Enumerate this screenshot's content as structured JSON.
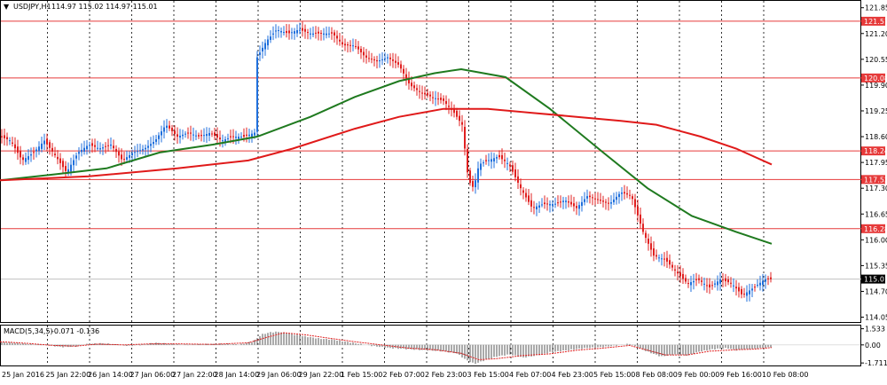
{
  "header": {
    "dropdown_glyph": "▼",
    "title": "USDJPY,H1",
    "ohlc": "114.97 115.02 114.97 115.01"
  },
  "indicator": {
    "label": "MACD(5,34,5)",
    "values": "-0.071 -0.136"
  },
  "colors": {
    "bull": "#1f6fdc",
    "bear": "#e02020",
    "ma_fast": "#1f7a1f",
    "ma_slow": "#e01a1a",
    "level": "#e63a3a",
    "macd_hist": "#555555",
    "macd_signal": "#e02020"
  },
  "chart_data": [
    {
      "type": "candlestick",
      "x_labels": [
        "25 Jan 2016",
        "25 Jan 22:00",
        "26 Jan 14:00",
        "27 Jan 06:00",
        "27 Jan 22:00",
        "28 Jan 14:00",
        "29 Jan 06:00",
        "29 Jan 22:00",
        "1 Feb 15:00",
        "2 Feb 07:00",
        "2 Feb 23:00",
        "3 Feb 15:00",
        "4 Feb 07:00",
        "4 Feb 23:00",
        "5 Feb 15:00",
        "8 Feb 08:00",
        "9 Feb 00:00",
        "9 Feb 16:00",
        "10 Feb 08:00"
      ],
      "y_ticks": [
        {
          "label": "121.85",
          "v": 121.85
        },
        {
          "label": "121.20",
          "v": 121.2
        },
        {
          "label": "120.55",
          "v": 120.55
        },
        {
          "label": "119.90",
          "v": 119.9
        },
        {
          "label": "119.25",
          "v": 119.25
        },
        {
          "label": "118.60",
          "v": 118.6
        },
        {
          "label": "117.95",
          "v": 117.95
        },
        {
          "label": "117.30",
          "v": 117.3
        },
        {
          "label": "116.65",
          "v": 116.65
        },
        {
          "label": "116.00",
          "v": 116.0
        },
        {
          "label": "115.35",
          "v": 115.35
        },
        {
          "label": "114.70",
          "v": 114.7
        },
        {
          "label": "114.05",
          "v": 114.05
        }
      ],
      "ylim": [
        113.95,
        122.0
      ],
      "levels": [
        {
          "label": "121.51",
          "v": 121.51
        },
        {
          "label": "120.08",
          "v": 120.08
        },
        {
          "label": "118.24",
          "v": 118.24
        },
        {
          "label": "117.52",
          "v": 117.52
        },
        {
          "label": "116.28",
          "v": 116.28
        }
      ],
      "current_price": {
        "label": "115.01",
        "v": 115.01
      },
      "price_path": [
        [
          0,
          118.6
        ],
        [
          12,
          118.5
        ],
        [
          25,
          118.0
        ],
        [
          38,
          118.2
        ],
        [
          50,
          118.5
        ],
        [
          63,
          118.1
        ],
        [
          75,
          117.7
        ],
        [
          88,
          118.2
        ],
        [
          100,
          118.4
        ],
        [
          112,
          118.3
        ],
        [
          125,
          118.4
        ],
        [
          138,
          118.0
        ],
        [
          150,
          118.2
        ],
        [
          163,
          118.3
        ],
        [
          175,
          118.5
        ],
        [
          187,
          118.9
        ],
        [
          200,
          118.6
        ],
        [
          212,
          118.7
        ],
        [
          225,
          118.6
        ],
        [
          237,
          118.7
        ],
        [
          250,
          118.5
        ],
        [
          262,
          118.6
        ],
        [
          275,
          118.6
        ],
        [
          287,
          118.7
        ],
        [
          290,
          120.6
        ],
        [
          300,
          121.0
        ],
        [
          312,
          121.3
        ],
        [
          325,
          121.2
        ],
        [
          337,
          121.3
        ],
        [
          350,
          121.2
        ],
        [
          362,
          121.2
        ],
        [
          375,
          121.2
        ],
        [
          387,
          120.9
        ],
        [
          400,
          120.9
        ],
        [
          412,
          120.6
        ],
        [
          425,
          120.5
        ],
        [
          437,
          120.6
        ],
        [
          450,
          120.4
        ],
        [
          462,
          119.9
        ],
        [
          475,
          119.7
        ],
        [
          487,
          119.6
        ],
        [
          500,
          119.5
        ],
        [
          512,
          119.2
        ],
        [
          521,
          118.9
        ],
        [
          528,
          117.5
        ],
        [
          534,
          117.3
        ],
        [
          540,
          117.9
        ],
        [
          550,
          118.0
        ],
        [
          562,
          118.1
        ],
        [
          574,
          117.9
        ],
        [
          587,
          117.3
        ],
        [
          600,
          116.8
        ],
        [
          612,
          116.9
        ],
        [
          625,
          116.9
        ],
        [
          637,
          117.0
        ],
        [
          650,
          116.8
        ],
        [
          662,
          117.1
        ],
        [
          675,
          117.0
        ],
        [
          687,
          116.9
        ],
        [
          700,
          117.2
        ],
        [
          712,
          117.1
        ],
        [
          725,
          116.2
        ],
        [
          737,
          115.6
        ],
        [
          750,
          115.5
        ],
        [
          762,
          115.2
        ],
        [
          775,
          114.9
        ],
        [
          787,
          115.0
        ],
        [
          800,
          114.8
        ],
        [
          812,
          115.0
        ],
        [
          825,
          114.9
        ],
        [
          837,
          114.6
        ],
        [
          850,
          114.8
        ],
        [
          862,
          115.0
        ],
        [
          870,
          115.01
        ]
      ],
      "series": [
        {
          "name": "",
          "kind": "ma",
          "path": [
            [
              0,
              117.5
            ],
            [
              62,
              117.65
            ],
            [
              120,
              117.8
            ],
            [
              180,
              118.2
            ],
            [
              240,
              118.4
            ],
            [
              290,
              118.6
            ],
            [
              350,
              119.1
            ],
            [
              400,
              119.6
            ],
            [
              450,
              120.0
            ],
            [
              490,
              120.2
            ],
            [
              520,
              120.3
            ],
            [
              570,
              120.1
            ],
            [
              620,
              119.3
            ],
            [
              680,
              118.2
            ],
            [
              730,
              117.3
            ],
            [
              780,
              116.6
            ],
            [
              830,
              116.2
            ],
            [
              870,
              115.9
            ]
          ]
        },
        {
          "name": "",
          "kind": "ma",
          "path": [
            [
              0,
              117.5
            ],
            [
              100,
              117.6
            ],
            [
              200,
              117.8
            ],
            [
              280,
              118.0
            ],
            [
              330,
              118.3
            ],
            [
              400,
              118.8
            ],
            [
              450,
              119.1
            ],
            [
              500,
              119.3
            ],
            [
              550,
              119.3
            ],
            [
              600,
              119.2
            ],
            [
              650,
              119.1
            ],
            [
              700,
              119.0
            ],
            [
              740,
              118.9
            ],
            [
              790,
              118.6
            ],
            [
              830,
              118.3
            ],
            [
              870,
              117.9
            ]
          ]
        }
      ]
    },
    {
      "type": "bar",
      "name": "MACD(5,34,5)",
      "y_ticks": [
        {
          "label": "1.533",
          "v": 1.533
        },
        {
          "label": "0.00",
          "v": 0.0
        },
        {
          "label": "-1.711",
          "v": -1.711
        }
      ],
      "ylim": [
        -1.95,
        1.75
      ],
      "histogram_path": [
        [
          0,
          0.25
        ],
        [
          15,
          0.2
        ],
        [
          30,
          0.1
        ],
        [
          50,
          0.0
        ],
        [
          70,
          -0.2
        ],
        [
          85,
          -0.15
        ],
        [
          100,
          0.1
        ],
        [
          115,
          0.15
        ],
        [
          130,
          0.05
        ],
        [
          145,
          -0.1
        ],
        [
          160,
          0.0
        ],
        [
          175,
          0.2
        ],
        [
          190,
          0.1
        ],
        [
          210,
          0.0
        ],
        [
          230,
          0.05
        ],
        [
          250,
          0.1
        ],
        [
          270,
          0.05
        ],
        [
          285,
          0.3
        ],
        [
          295,
          1.0
        ],
        [
          305,
          1.2
        ],
        [
          315,
          1.25
        ],
        [
          330,
          1.0
        ],
        [
          345,
          0.8
        ],
        [
          360,
          0.6
        ],
        [
          375,
          0.5
        ],
        [
          390,
          0.3
        ],
        [
          405,
          0.1
        ],
        [
          420,
          -0.1
        ],
        [
          440,
          -0.3
        ],
        [
          460,
          -0.4
        ],
        [
          480,
          -0.5
        ],
        [
          500,
          -0.6
        ],
        [
          515,
          -0.8
        ],
        [
          525,
          -1.4
        ],
        [
          535,
          -1.8
        ],
        [
          545,
          -1.5
        ],
        [
          560,
          -1.1
        ],
        [
          575,
          -0.9
        ],
        [
          590,
          -1.2
        ],
        [
          605,
          -1.0
        ],
        [
          620,
          -0.7
        ],
        [
          640,
          -0.5
        ],
        [
          660,
          -0.3
        ],
        [
          680,
          -0.2
        ],
        [
          700,
          0.0
        ],
        [
          710,
          0.1
        ],
        [
          720,
          -0.3
        ],
        [
          735,
          -0.8
        ],
        [
          745,
          -1.1
        ],
        [
          760,
          -0.9
        ],
        [
          775,
          -1.0
        ],
        [
          790,
          -0.6
        ],
        [
          805,
          -0.4
        ],
        [
          820,
          -0.3
        ],
        [
          830,
          -0.5
        ],
        [
          845,
          -0.4
        ],
        [
          860,
          -0.3
        ],
        [
          870,
          -0.2
        ]
      ],
      "signal_path": [
        [
          0,
          0.3
        ],
        [
          30,
          0.15
        ],
        [
          60,
          -0.05
        ],
        [
          85,
          -0.12
        ],
        [
          110,
          0.08
        ],
        [
          140,
          0.0
        ],
        [
          170,
          0.1
        ],
        [
          200,
          0.1
        ],
        [
          240,
          0.05
        ],
        [
          280,
          0.2
        ],
        [
          300,
          0.7
        ],
        [
          320,
          1.15
        ],
        [
          345,
          0.95
        ],
        [
          370,
          0.65
        ],
        [
          400,
          0.3
        ],
        [
          430,
          0.0
        ],
        [
          460,
          -0.3
        ],
        [
          490,
          -0.45
        ],
        [
          520,
          -0.8
        ],
        [
          540,
          -1.4
        ],
        [
          560,
          -1.3
        ],
        [
          590,
          -1.0
        ],
        [
          620,
          -0.85
        ],
        [
          650,
          -0.5
        ],
        [
          680,
          -0.3
        ],
        [
          710,
          -0.05
        ],
        [
          730,
          -0.5
        ],
        [
          750,
          -0.95
        ],
        [
          775,
          -0.95
        ],
        [
          800,
          -0.6
        ],
        [
          830,
          -0.45
        ],
        [
          850,
          -0.4
        ],
        [
          870,
          -0.25
        ]
      ]
    }
  ]
}
